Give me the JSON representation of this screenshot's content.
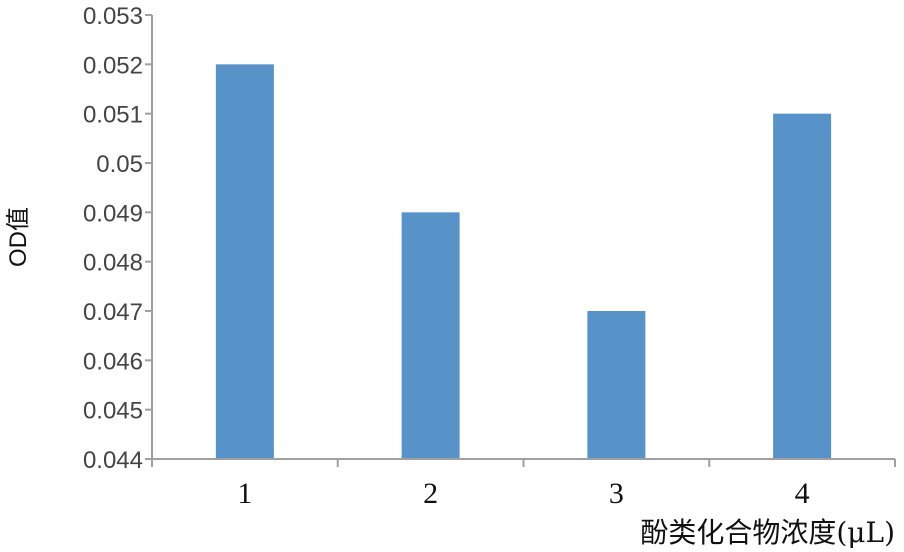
{
  "chart_data": {
    "type": "bar",
    "categories": [
      "1",
      "2",
      "3",
      "4"
    ],
    "values": [
      0.052,
      0.049,
      0.047,
      0.051
    ],
    "title": "",
    "xlabel": "酚类化合物浓度(μL)",
    "ylabel": "OD值",
    "ylim": [
      0.044,
      0.053
    ],
    "yticks": [
      "0.044",
      "0.045",
      "0.046",
      "0.047",
      "0.048",
      "0.049",
      "0.05",
      "0.051",
      "0.052",
      "0.053"
    ],
    "grid": false,
    "legend": "none",
    "bar_color": "#5792C9",
    "axis_color": "#A0A0A0"
  }
}
